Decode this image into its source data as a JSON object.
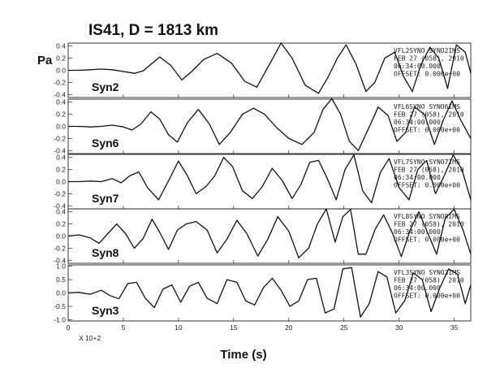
{
  "chart_data": {
    "type": "line",
    "title": "IS41, D = 1813 km",
    "ylabel": "Pa",
    "xlabel": "Time (s)",
    "x_scale_note": "X 10+2",
    "xlim": [
      0,
      36.5
    ],
    "x_ticks": [
      {
        "value": 0,
        "label": "0"
      },
      {
        "value": 5,
        "label": "5"
      },
      {
        "value": 10,
        "label": "10"
      },
      {
        "value": 15,
        "label": "15"
      },
      {
        "value": 20,
        "label": "20"
      },
      {
        "value": 25,
        "label": "25"
      },
      {
        "value": 30,
        "label": "30"
      },
      {
        "value": 35,
        "label": "35"
      }
    ],
    "panels": [
      {
        "name": "Syn2",
        "ylim": [
          -0.45,
          0.45
        ],
        "y_ticks": [
          {
            "value": 0.4,
            "label": "0.4"
          },
          {
            "value": 0.2,
            "label": "0.2"
          },
          {
            "value": 0.0,
            "label": "0.0"
          },
          {
            "value": -0.2,
            "label": "-0.2"
          },
          {
            "value": -0.4,
            "label": "-0.4"
          }
        ],
        "info": [
          "VFL2SYNO   SYNO2IMS",
          "FEB 27 (058), 2010",
          "06:34:00.000",
          "OFFSET:  0.000e+00"
        ],
        "x": [
          0,
          1,
          2,
          3,
          4,
          5,
          6,
          6.8,
          7.5,
          8.3,
          9.3,
          10.3,
          11.2,
          12.3,
          13.5,
          14.8,
          16,
          17.1,
          18.2,
          19.3,
          20.3,
          21.5,
          22.7,
          23.6,
          24.4,
          25.2,
          26.1,
          27,
          27.8,
          28.7,
          29.6,
          30.4,
          31.2,
          32,
          32.8,
          33.6,
          34.4,
          35.2,
          36,
          36.5
        ],
        "values": [
          0,
          0,
          0.01,
          0.02,
          0.01,
          -0.02,
          -0.05,
          -0.01,
          0.1,
          0.22,
          0.08,
          -0.16,
          -0.02,
          0.18,
          0.28,
          0.12,
          -0.18,
          -0.28,
          0.08,
          0.45,
          0.2,
          -0.25,
          -0.38,
          -0.1,
          0.2,
          0.42,
          0.1,
          -0.35,
          -0.2,
          0.2,
          0.3,
          -0.1,
          -0.35,
          0.1,
          0.38,
          0.2,
          -0.3,
          0.42,
          0.3,
          -0.05
        ]
      },
      {
        "name": "Syn6",
        "ylim": [
          -0.45,
          0.45
        ],
        "y_ticks": [
          {
            "value": 0.4,
            "label": "0.4"
          },
          {
            "value": 0.2,
            "label": "0.2"
          },
          {
            "value": 0.0,
            "label": "0.0"
          },
          {
            "value": -0.2,
            "label": "-0.2"
          },
          {
            "value": -0.4,
            "label": "-0.4"
          }
        ],
        "info": [
          "VFL6SYNO   SYNO6IMS",
          "FEB 27 (058), 2010",
          "06:34:00.000",
          "OFFSET:  0.000e+00"
        ],
        "x": [
          0,
          1,
          2,
          3,
          4,
          5,
          5.8,
          6.6,
          7.5,
          8.3,
          9.1,
          9.9,
          10.8,
          11.8,
          12.8,
          13.7,
          14.7,
          15.8,
          16.8,
          17.8,
          18.9,
          20,
          21.2,
          22.3,
          23.1,
          23.9,
          24.7,
          25.5,
          26.3,
          27.2,
          28.1,
          29,
          29.8,
          30.6,
          31.4,
          32.3,
          33.2,
          34,
          34.8,
          35.6,
          36.5
        ],
        "values": [
          0,
          0,
          -0.01,
          0,
          0.02,
          -0.01,
          -0.06,
          0.04,
          0.24,
          0.12,
          -0.14,
          -0.26,
          0.06,
          0.28,
          0.04,
          -0.3,
          -0.1,
          0.2,
          0.3,
          0.2,
          -0.02,
          -0.2,
          -0.3,
          -0.1,
          0.28,
          0.46,
          0.2,
          -0.25,
          -0.4,
          -0.05,
          0.32,
          0.18,
          -0.25,
          -0.1,
          0.32,
          0.2,
          -0.3,
          0.1,
          0.42,
          0.1,
          -0.2
        ]
      },
      {
        "name": "Syn7",
        "ylim": [
          -0.45,
          0.45
        ],
        "y_ticks": [
          {
            "value": 0.4,
            "label": "0.4"
          },
          {
            "value": 0.2,
            "label": "0.2"
          },
          {
            "value": 0.0,
            "label": "0.0"
          },
          {
            "value": -0.2,
            "label": "-0.2"
          },
          {
            "value": -0.4,
            "label": "-0.4"
          }
        ],
        "info": [
          "VFL7SYNO   SYNO7IMS",
          "FEB 27 (058), 2010",
          "06:34:00.000",
          "OFFSET:  0.000e+00"
        ],
        "x": [
          0,
          1,
          2,
          3,
          4,
          4.8,
          5.6,
          6.4,
          7.2,
          8.2,
          9.2,
          10,
          10.8,
          11.6,
          12.5,
          13.3,
          14.1,
          14.9,
          15.8,
          16.7,
          17.6,
          18.5,
          19.4,
          20.3,
          21.1,
          21.9,
          22.7,
          23.5,
          24.3,
          25.1,
          25.9,
          26.7,
          27.5,
          28.3,
          29.1,
          30,
          30.9,
          31.7,
          32.5,
          33.3,
          34.1,
          34.9,
          35.7,
          36.5
        ],
        "values": [
          0,
          0,
          0.01,
          0,
          0.05,
          -0.02,
          0.1,
          0.16,
          -0.1,
          -0.3,
          0.05,
          0.34,
          0.1,
          -0.2,
          -0.08,
          0.1,
          0.4,
          0.25,
          -0.15,
          -0.28,
          -0.08,
          0.22,
          0.02,
          -0.28,
          -0.05,
          0.32,
          0.35,
          0.05,
          -0.3,
          0.2,
          0.44,
          -0.15,
          -0.35,
          0.15,
          0.38,
          -0.1,
          -0.3,
          0.2,
          0.35,
          -0.2,
          0.1,
          0.44,
          0.2,
          -0.3
        ]
      },
      {
        "name": "Syn8",
        "ylim": [
          -0.45,
          0.45
        ],
        "y_ticks": [
          {
            "value": 0.4,
            "label": "0.4"
          },
          {
            "value": 0.2,
            "label": "0.2"
          },
          {
            "value": 0.0,
            "label": "0.0"
          },
          {
            "value": -0.2,
            "label": "-0.2"
          },
          {
            "value": -0.4,
            "label": "-0.4"
          }
        ],
        "info": [
          "VFL8SYNO   SYNO8IMS",
          "FEB 27 (058), 2010",
          "06:34:00.000",
          "OFFSET:  0.000e+00"
        ],
        "x": [
          0,
          1,
          2,
          2.8,
          3.6,
          4.4,
          5.2,
          6,
          6.8,
          7.6,
          8.3,
          9.1,
          9.9,
          10.7,
          11.6,
          12.6,
          13.5,
          14.4,
          15.3,
          16.2,
          17.2,
          18.1,
          19,
          20,
          20.9,
          21.8,
          22.6,
          23.4,
          24.2,
          24.9,
          25.6,
          26.3,
          27,
          27.8,
          28.6,
          29.4,
          30.2,
          31,
          31.8,
          32.6,
          33.4,
          34.2,
          35,
          35.8,
          36.5
        ],
        "values": [
          0,
          0.02,
          -0.03,
          -0.12,
          0.04,
          0.2,
          0.04,
          -0.2,
          -0.04,
          0.28,
          0.06,
          -0.22,
          0.1,
          0.2,
          0.24,
          0.1,
          -0.28,
          -0.05,
          0.26,
          0.04,
          -0.33,
          -0.05,
          0.32,
          0.08,
          -0.36,
          -0.2,
          0.2,
          0.45,
          -0.1,
          0.32,
          0.44,
          -0.3,
          -0.3,
          0.1,
          0.35,
          0.05,
          -0.34,
          0.1,
          0.4,
          0.05,
          -0.3,
          0.3,
          0.44,
          0.1,
          -0.3
        ]
      },
      {
        "name": "Syn3",
        "ylim": [
          -1.05,
          1.05
        ],
        "y_ticks": [
          {
            "value": 1.0,
            "label": "1.0"
          },
          {
            "value": 0.5,
            "label": "0.5"
          },
          {
            "value": 0.0,
            "label": "0.0"
          },
          {
            "value": -0.5,
            "label": "-0.5"
          },
          {
            "value": -1.0,
            "label": "-1.0"
          }
        ],
        "info": [
          "VFL3SYNO   SYNO3IMS",
          "FEB 27 (058), 2010",
          "06:34:00.000",
          "OFFSET:  0.000e+00"
        ],
        "x": [
          0,
          1,
          2,
          3,
          3.8,
          4.6,
          5.4,
          6.2,
          7,
          7.8,
          8.6,
          9.4,
          10.2,
          11,
          11.8,
          12.6,
          13.5,
          14.4,
          15.3,
          16.1,
          16.9,
          17.7,
          18.5,
          19.3,
          20.1,
          20.9,
          21.7,
          22.5,
          23.3,
          24.1,
          24.9,
          25.7,
          26.5,
          27.3,
          28.1,
          28.9,
          29.7,
          30.5,
          31.3,
          32.1,
          32.9,
          33.7,
          34.5,
          35.3,
          36,
          36.5
        ],
        "values": [
          0,
          0.02,
          -0.05,
          0.1,
          -0.1,
          -0.22,
          0.35,
          0.4,
          -0.2,
          -0.55,
          0.15,
          0.3,
          -0.35,
          0.25,
          0.4,
          -0.2,
          -0.4,
          0.5,
          0.4,
          -0.3,
          -0.45,
          0.2,
          0.55,
          0.1,
          -0.5,
          -0.3,
          0.5,
          0.55,
          -0.75,
          -0.6,
          0.9,
          0.95,
          -0.9,
          -0.4,
          0.8,
          0.6,
          -0.75,
          -0.3,
          0.75,
          0.5,
          -0.7,
          0.2,
          0.9,
          0.7,
          -0.4,
          0.3
        ]
      }
    ]
  }
}
